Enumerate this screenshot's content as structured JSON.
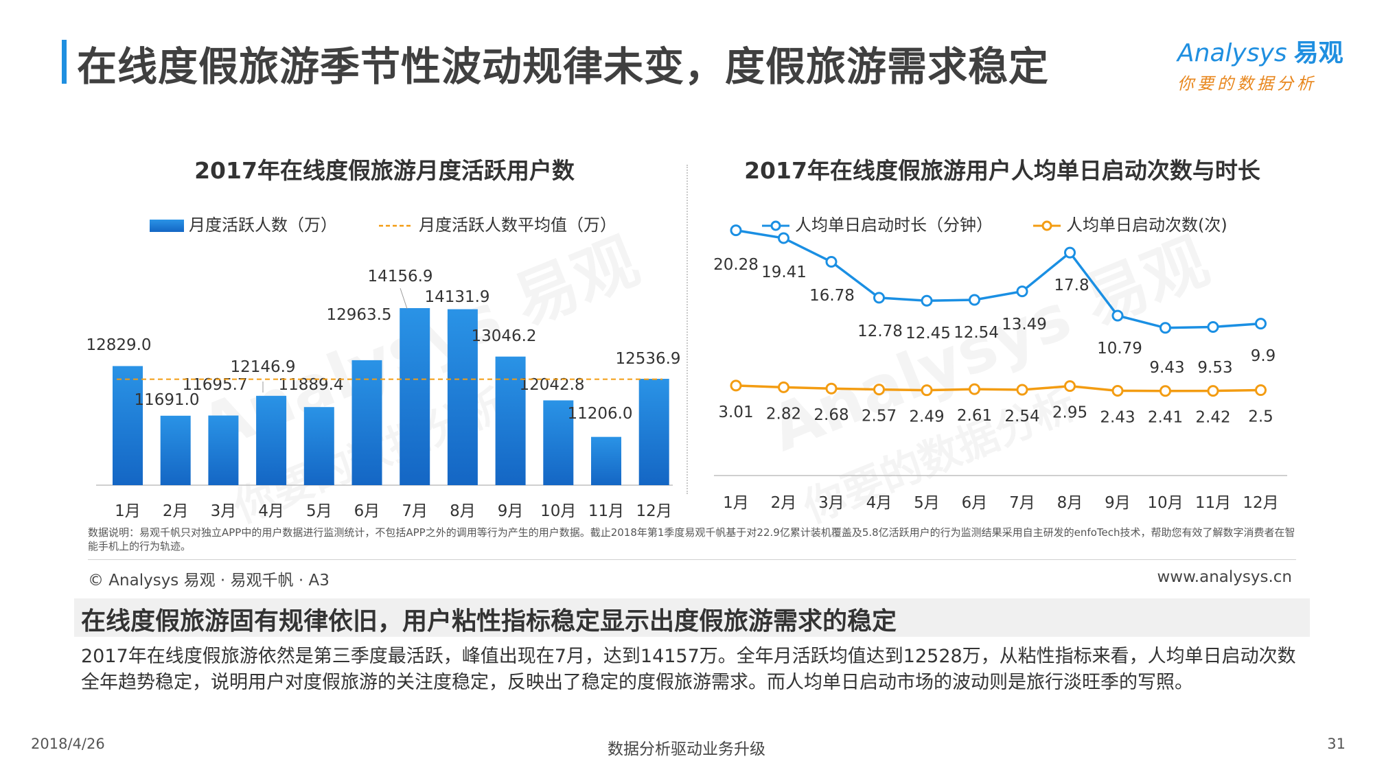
{
  "page": {
    "title": "在线度假旅游季节性波动规律未变，度假旅游需求稳定",
    "logo_brand": "nalysys",
    "logo_brand_initial": "A",
    "logo_cn": "易观",
    "logo_slogan": "你要的数据分析",
    "watermark_brand": "Analysys 易观",
    "watermark_slogan": "你要的数据分析"
  },
  "colors": {
    "accent": "#1f8fe0",
    "bar": "#1a7fd6",
    "average_line": "#f39c12",
    "duration_line": "#1a8fe3",
    "launches_line": "#f39c12"
  },
  "chart_data": [
    {
      "type": "bar",
      "title": "2017年在线度假旅游月度活跃用户数",
      "legend_placement": "top",
      "categories": [
        "1月",
        "2月",
        "3月",
        "4月",
        "5月",
        "6月",
        "7月",
        "8月",
        "9月",
        "10月",
        "11月",
        "12月"
      ],
      "series": [
        {
          "name": "月度活跃人数（万）",
          "type": "bar",
          "values": [
            12829.0,
            11691.0,
            11695.7,
            12146.9,
            11889.4,
            12963.5,
            14156.9,
            14131.9,
            13046.2,
            12042.8,
            11206.0,
            12536.9
          ]
        }
      ],
      "reference_line": {
        "name": "月度活跃人数平均值（万）",
        "value": 12528
      },
      "value_labels": [
        "12829.0",
        "11691.0",
        "11695.7",
        "12146.9",
        "11889.4",
        "12963.5",
        "14156.9",
        "14131.9",
        "13046.2",
        "12042.8",
        "11206.0",
        "12536.9"
      ],
      "ylim": [
        10100,
        14400
      ],
      "grid": false
    },
    {
      "type": "line",
      "title": "2017年在线度假旅游用户人均单日启动次数与时长",
      "legend_placement": "top",
      "categories": [
        "1月",
        "2月",
        "3月",
        "4月",
        "5月",
        "6月",
        "7月",
        "8月",
        "9月",
        "10月",
        "11月",
        "12月"
      ],
      "series": [
        {
          "name": "人均单日启动时长（分钟）",
          "values": [
            20.28,
            19.41,
            16.78,
            12.78,
            12.45,
            12.54,
            13.49,
            17.8,
            10.79,
            9.43,
            9.53,
            9.9
          ],
          "labels": [
            "20.28",
            "19.41",
            "16.78",
            "12.78",
            "12.45",
            "12.54",
            "13.49",
            "17.8",
            "10.79",
            "9.43",
            "9.53",
            "9.9"
          ]
        },
        {
          "name": "人均单日启动次数(次)",
          "values": [
            3.01,
            2.82,
            2.68,
            2.57,
            2.49,
            2.61,
            2.54,
            2.95,
            2.43,
            2.41,
            2.42,
            2.5
          ],
          "labels": [
            "3.01",
            "2.82",
            "2.68",
            "2.57",
            "2.49",
            "2.61",
            "2.54",
            "2.95",
            "2.43",
            "2.41",
            "2.42",
            "2.5"
          ]
        }
      ],
      "ylim": [
        -7,
        23
      ],
      "grid": false
    }
  ],
  "note": "数据说明：易观千帆只对独立APP中的用户数据进行监测统计，不包括APP之外的调用等行为产生的用户数据。截止2018年第1季度易观千帆基于对22.9亿累计装机覆盖及5.8亿活跃用户的行为监测结果采用自主研发的enfoTech技术，帮助您有效了解数字消费者在智能手机上的行为轨迹。",
  "copyright": "© Analysys 易观 · 易观千帆 · A3",
  "website": "www.analysys.cn",
  "summary": {
    "title": "在线度假旅游固有规律依旧，用户粘性指标稳定显示出度假旅游需求的稳定",
    "text": "2017年在线度假旅游依然是第三季度最活跃，峰值出现在7月，达到14157万。全年月活跃均值达到12528万，从粘性指标来看，人均单日启动次数全年趋势稳定，说明用户对度假旅游的关注度稳定，反映出了稳定的度假旅游需求。而人均单日启动市场的波动则是旅行淡旺季的写照。"
  },
  "footer": {
    "date": "2018/4/26",
    "center": "数据分析驱动业务升级",
    "page": "31"
  }
}
